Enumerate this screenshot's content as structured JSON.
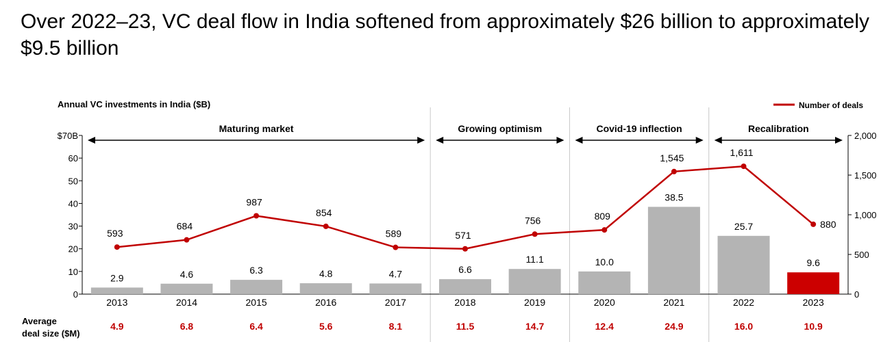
{
  "headline": "Over 2022–23, VC deal flow in India softened from approximately $26 billion to approximately $9.5 billion",
  "colors": {
    "bar": "#b4b4b4",
    "highlight_bar": "#cc0000",
    "line": "#c00000",
    "divider": "#c8c8c8",
    "deal_size_text": "#c00000"
  },
  "chart_data": {
    "type": "bar",
    "title": "Annual VC investments in India ($B)",
    "categories": [
      "2013",
      "2014",
      "2015",
      "2016",
      "2017",
      "2018",
      "2019",
      "2020",
      "2021",
      "2022",
      "2023"
    ],
    "values": [
      2.9,
      4.6,
      6.3,
      4.8,
      4.7,
      6.6,
      11.1,
      10.0,
      38.5,
      25.7,
      9.6
    ],
    "value_labels": [
      "2.9",
      "4.6",
      "6.3",
      "4.8",
      "4.7",
      "6.6",
      "11.1",
      "10.0",
      "38.5",
      "25.7",
      "9.6"
    ],
    "highlight_category": "2023",
    "ylim": [
      0,
      70
    ],
    "yticks": [
      "0",
      "10",
      "20",
      "30",
      "40",
      "50",
      "60",
      "$70B"
    ],
    "line_series": {
      "name": "Number of deals",
      "values": [
        593,
        684,
        987,
        854,
        589,
        571,
        756,
        809,
        1545,
        1611,
        880
      ],
      "labels": [
        "593",
        "684",
        "987",
        "854",
        "589",
        "571",
        "756",
        "809",
        "1,545",
        "1,611",
        "880"
      ],
      "ylim": [
        0,
        2000
      ],
      "yticks": [
        "0",
        "500",
        "1,000",
        "1,500",
        "2,000"
      ]
    },
    "legend": {
      "label": "Number of deals",
      "position": "top-right"
    },
    "phases": [
      {
        "label": "Maturing market",
        "start": "2013",
        "end": "2017"
      },
      {
        "label": "Growing optimism",
        "start": "2018",
        "end": "2019"
      },
      {
        "label": "Covid-19 inflection",
        "start": "2020",
        "end": "2021"
      },
      {
        "label": "Recalibration",
        "start": "2022",
        "end": "2023"
      }
    ],
    "average_deal_size": {
      "label_line1": "Average",
      "label_line2": "deal size ($M)",
      "values": [
        "4.9",
        "6.8",
        "6.4",
        "5.6",
        "8.1",
        "11.5",
        "14.7",
        "12.4",
        "24.9",
        "16.0",
        "10.9"
      ]
    },
    "grid": false
  }
}
